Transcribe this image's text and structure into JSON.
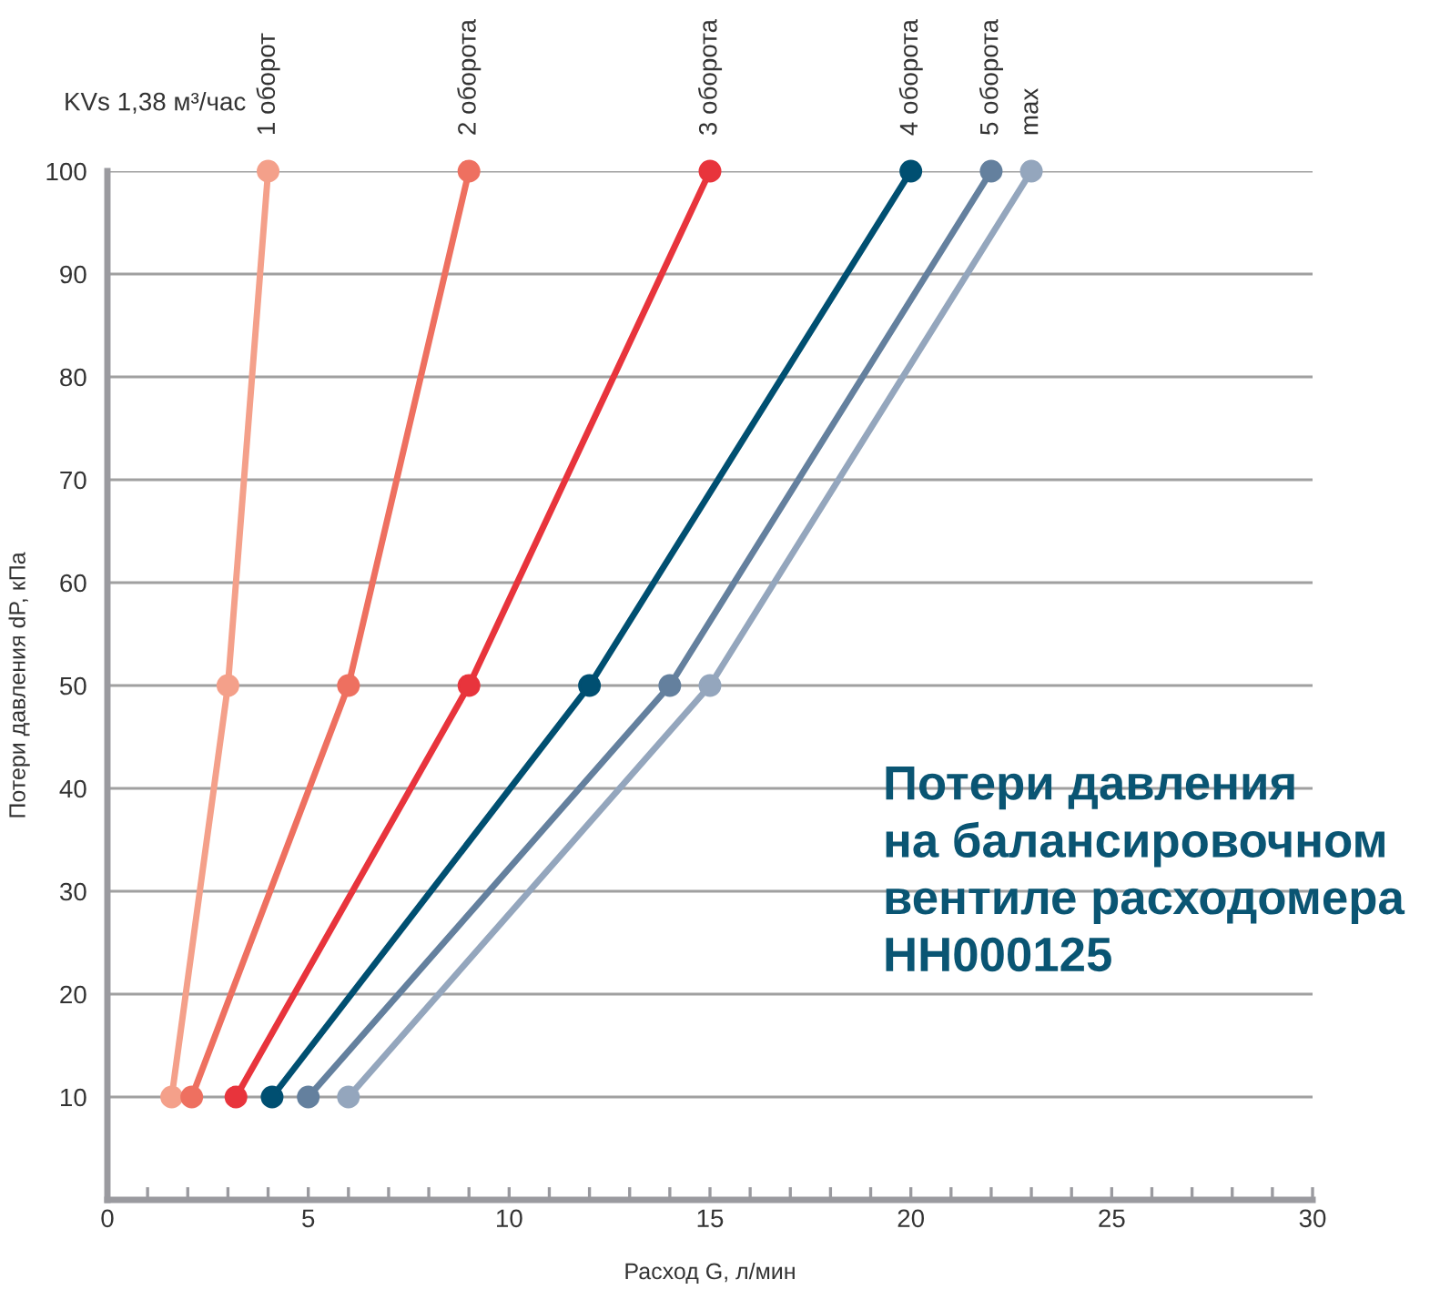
{
  "chart_data": {
    "type": "line",
    "title": "Потери давления\nна балансировочном\nвентиле расходомера\nHH000125",
    "xlabel": "Расход G, л/мин",
    "ylabel": "Потери давления dP, кПа",
    "annotations": [
      "KVs 1,38 м³/час"
    ],
    "xlim": [
      0,
      30
    ],
    "xticks": [
      0,
      5,
      10,
      15,
      20,
      25,
      30
    ],
    "ylim": [
      0,
      100
    ],
    "yticks": [
      10,
      20,
      30,
      40,
      50,
      60,
      70,
      80,
      90,
      100
    ],
    "grid": "y",
    "legend": false,
    "marker": "circle",
    "line_style": "solid",
    "series": [
      {
        "name": "1 оборот",
        "color": "#f4a08a",
        "x": [
          1.6,
          3.0,
          4.0
        ],
        "values": [
          10,
          50,
          100
        ]
      },
      {
        "name": "2 оборота",
        "color": "#ee7060",
        "x": [
          2.1,
          6.0,
          9.0
        ],
        "values": [
          10,
          50,
          100
        ]
      },
      {
        "name": "3 оборота",
        "color": "#e8343c",
        "x": [
          3.2,
          9.0,
          15.0
        ],
        "values": [
          10,
          50,
          100
        ]
      },
      {
        "name": "4 оборота",
        "color": "#004f71",
        "x": [
          4.1,
          12.0,
          20.0
        ],
        "values": [
          10,
          50,
          100
        ]
      },
      {
        "name": "5 оборота",
        "color": "#64809e",
        "x": [
          5.0,
          14.0,
          22.0
        ],
        "values": [
          10,
          50,
          100
        ]
      },
      {
        "name": "max",
        "color": "#94a6bd",
        "x": [
          6.0,
          15.0,
          23.0
        ],
        "values": [
          10,
          50,
          100
        ]
      }
    ]
  }
}
